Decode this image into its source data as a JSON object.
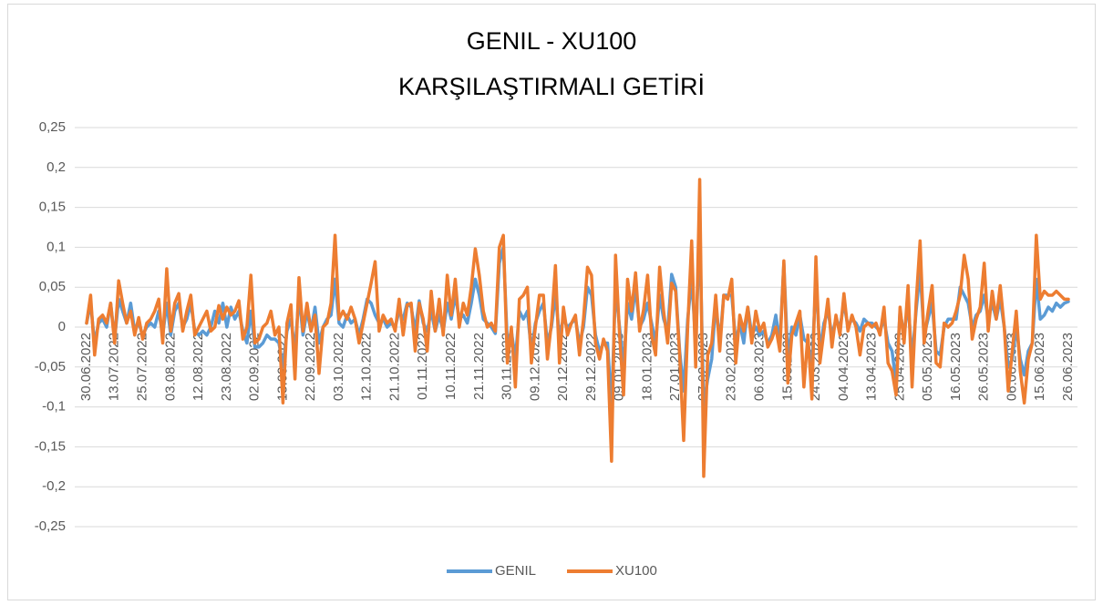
{
  "chart_data": {
    "type": "line",
    "title": [
      "GENIL - XU100",
      "KARŞILAŞTIRMALI GETİRİ"
    ],
    "categories": [
      "30.06.2022",
      null,
      null,
      null,
      null,
      null,
      null,
      "13.07.2022",
      null,
      null,
      null,
      null,
      null,
      null,
      "25.07.2022",
      null,
      null,
      null,
      null,
      null,
      null,
      "03.08.2022",
      null,
      null,
      null,
      null,
      null,
      null,
      "12.08.2022",
      null,
      null,
      null,
      null,
      null,
      null,
      "23.08.2022",
      null,
      null,
      null,
      null,
      null,
      null,
      "02.09.2022",
      null,
      null,
      null,
      null,
      null,
      null,
      "13.09.2022",
      null,
      null,
      null,
      null,
      null,
      null,
      "22.09.2022",
      null,
      null,
      null,
      null,
      null,
      null,
      "03.10.2022",
      null,
      null,
      null,
      null,
      null,
      null,
      "12.10.2022",
      null,
      null,
      null,
      null,
      null,
      null,
      "21.10.2022",
      null,
      null,
      null,
      null,
      null,
      null,
      "01.11.2022",
      null,
      null,
      null,
      null,
      null,
      null,
      "10.11.2022",
      null,
      null,
      null,
      null,
      null,
      null,
      "21.11.2022",
      null,
      null,
      null,
      null,
      null,
      null,
      "30.11.2022",
      null,
      null,
      null,
      null,
      null,
      null,
      "09.12.2022",
      null,
      null,
      null,
      null,
      null,
      null,
      "20.12.2022",
      null,
      null,
      null,
      null,
      null,
      null,
      "29.12.2022",
      null,
      null,
      null,
      null,
      null,
      null,
      "09.01.2023",
      null,
      null,
      null,
      null,
      null,
      null,
      "18.01.2023",
      null,
      null,
      null,
      null,
      null,
      null,
      "27.01.2023",
      null,
      null,
      null,
      null,
      null,
      null,
      "07.02.2023",
      null,
      null,
      null,
      null,
      null,
      null,
      "23.02.2023",
      null,
      null,
      null,
      null,
      null,
      null,
      "06.03.2023",
      null,
      null,
      null,
      null,
      null,
      null,
      "15.03.2023",
      null,
      null,
      null,
      null,
      null,
      null,
      "24.03.2023",
      null,
      null,
      null,
      null,
      null,
      null,
      "04.04.2023",
      null,
      null,
      null,
      null,
      null,
      null,
      "13.04.2023",
      null,
      null,
      null,
      null,
      null,
      null,
      "25.04.2023",
      null,
      null,
      null,
      null,
      null,
      null,
      "05.05.2023",
      null,
      null,
      null,
      null,
      null,
      null,
      "16.05.2023",
      null,
      null,
      null,
      null,
      null,
      null,
      "26.05.2023",
      null,
      null,
      null,
      null,
      null,
      null,
      "06.06.2023",
      null,
      null,
      null,
      null,
      null,
      null,
      "15.06.2023",
      null,
      null,
      null,
      null,
      null,
      null,
      "26.06.2023"
    ],
    "series": [
      {
        "name": "GENIL",
        "color": "#5b9bd5",
        "values": [
          0.005,
          0.03,
          -0.02,
          0.005,
          0.01,
          0.0,
          0.03,
          -0.015,
          0.035,
          0.02,
          0.005,
          0.03,
          -0.005,
          0.005,
          -0.01,
          0.0,
          0.005,
          0.0,
          0.02,
          -0.01,
          0.03,
          -0.01,
          0.02,
          0.03,
          0.0,
          0.01,
          0.03,
          -0.005,
          -0.01,
          -0.005,
          -0.01,
          0.0,
          0.02,
          0.005,
          0.03,
          0.0,
          0.025,
          0.01,
          0.02,
          -0.005,
          -0.02,
          0.02,
          -0.025,
          -0.025,
          -0.02,
          -0.01,
          -0.015,
          -0.015,
          -0.02,
          -0.05,
          -0.005,
          0.01,
          -0.03,
          0.04,
          -0.01,
          0.02,
          -0.005,
          0.025,
          -0.02,
          0.0,
          0.01,
          0.015,
          0.06,
          0.005,
          0.0,
          0.015,
          0.005,
          0.01,
          -0.01,
          0.01,
          0.035,
          0.03,
          0.015,
          0.005,
          0.01,
          0.0,
          0.005,
          0.0,
          0.02,
          0.01,
          0.03,
          0.025,
          -0.005,
          0.033,
          0.005,
          -0.005,
          0.02,
          -0.005,
          0.015,
          -0.005,
          0.03,
          0.01,
          0.04,
          0.01,
          0.015,
          0.005,
          0.03,
          0.06,
          0.04,
          0.01,
          0.005,
          0.0,
          -0.008,
          0.08,
          0.1,
          -0.02,
          -0.005,
          -0.04,
          0.02,
          0.01,
          0.02,
          -0.03,
          0.005,
          0.02,
          0.03,
          -0.02,
          0.0,
          0.04,
          -0.01,
          0.01,
          0.0,
          0.005,
          0.01,
          -0.02,
          0.0,
          0.05,
          0.04,
          -0.01,
          -0.03,
          -0.02,
          -0.02,
          -0.1,
          0.05,
          0.0,
          -0.05,
          0.03,
          0.01,
          0.05,
          0.0,
          0.01,
          0.03,
          0.005,
          -0.02,
          0.04,
          0.01,
          -0.005,
          0.066,
          0.05,
          -0.03,
          -0.08,
          0.01,
          0.06,
          -0.02,
          0.12,
          -0.1,
          -0.065,
          -0.04,
          0.03,
          -0.02,
          0.04,
          0.04,
          0.04,
          -0.02,
          0.005,
          -0.02,
          0.025,
          -0.01,
          0.0,
          -0.01,
          -0.005,
          -0.02,
          -0.01,
          0.015,
          -0.02,
          0.08,
          -0.04,
          0.0,
          -0.01,
          0.015,
          -0.015,
          -0.02,
          -0.05,
          0.06,
          -0.03,
          0.005,
          0.02,
          -0.01,
          0.01,
          0.0,
          0.03,
          0.0,
          0.01,
          0.005,
          -0.005,
          0.01,
          0.005,
          0.005,
          0.0,
          -0.005,
          0.01,
          -0.02,
          -0.03,
          -0.07,
          0.02,
          -0.01,
          0.03,
          -0.04,
          0.02,
          0.07,
          -0.01,
          0.01,
          0.03,
          -0.03,
          -0.035,
          0.0,
          0.01,
          0.01,
          0.01,
          0.05,
          0.04,
          0.03,
          0.0,
          0.015,
          0.02,
          0.04,
          0.01,
          0.03,
          0.01,
          0.035,
          0.0,
          -0.05,
          -0.04,
          0.0,
          -0.04,
          -0.06,
          -0.03,
          -0.02,
          0.06,
          0.01,
          0.015,
          0.025,
          0.02,
          0.03,
          0.025,
          0.03,
          0.032
        ]
      },
      {
        "name": "XU100",
        "color": "#ed7d31",
        "values": [
          0.005,
          0.04,
          -0.035,
          0.01,
          0.015,
          0.005,
          0.03,
          -0.02,
          0.058,
          0.03,
          0.005,
          0.02,
          -0.01,
          0.012,
          -0.015,
          0.005,
          0.01,
          0.02,
          0.035,
          -0.02,
          0.073,
          -0.005,
          0.03,
          0.042,
          -0.005,
          0.02,
          0.04,
          -0.01,
          0.0,
          0.01,
          0.02,
          -0.005,
          0.0,
          0.027,
          0.01,
          0.025,
          0.015,
          0.02,
          0.033,
          -0.015,
          0.0,
          0.065,
          -0.02,
          -0.015,
          0.0,
          0.005,
          0.02,
          -0.01,
          0.0,
          -0.095,
          0.005,
          0.028,
          -0.065,
          0.062,
          -0.005,
          0.03,
          -0.005,
          0.015,
          -0.058,
          0.0,
          0.005,
          0.03,
          0.115,
          0.01,
          0.02,
          0.01,
          0.025,
          0.01,
          -0.02,
          0.005,
          0.03,
          0.055,
          0.082,
          -0.005,
          0.015,
          0.005,
          0.01,
          -0.005,
          0.035,
          -0.01,
          0.028,
          0.03,
          -0.03,
          0.03,
          0.01,
          -0.03,
          0.045,
          -0.005,
          0.035,
          -0.01,
          0.065,
          0.015,
          0.06,
          0.0,
          0.03,
          0.015,
          0.05,
          0.098,
          0.065,
          0.02,
          0.0,
          0.005,
          -0.005,
          0.1,
          0.115,
          -0.045,
          0.0,
          -0.075,
          0.035,
          0.04,
          0.05,
          -0.045,
          0.0,
          0.04,
          0.04,
          -0.04,
          0.005,
          0.077,
          -0.045,
          0.025,
          -0.01,
          0.005,
          0.015,
          -0.035,
          0.01,
          0.075,
          0.065,
          -0.02,
          -0.04,
          -0.015,
          -0.03,
          -0.168,
          0.09,
          -0.01,
          -0.085,
          0.06,
          0.02,
          0.068,
          -0.005,
          0.022,
          0.065,
          -0.01,
          -0.035,
          0.075,
          0.02,
          -0.02,
          0.055,
          0.045,
          -0.035,
          -0.142,
          0.0,
          0.108,
          -0.05,
          0.185,
          -0.187,
          -0.035,
          -0.02,
          0.04,
          -0.03,
          0.04,
          0.035,
          0.06,
          -0.045,
          0.015,
          -0.005,
          0.025,
          -0.02,
          0.02,
          -0.005,
          0.005,
          -0.025,
          -0.015,
          0.0,
          -0.03,
          0.083,
          -0.07,
          -0.01,
          0.005,
          0.02,
          -0.075,
          -0.01,
          -0.09,
          0.088,
          -0.045,
          -0.005,
          0.035,
          -0.025,
          0.015,
          -0.01,
          0.042,
          -0.005,
          0.015,
          0.0,
          -0.035,
          0.0,
          0.005,
          0.0,
          0.005,
          -0.01,
          0.025,
          -0.045,
          -0.055,
          -0.085,
          0.025,
          -0.02,
          0.052,
          -0.075,
          0.03,
          0.108,
          -0.02,
          0.02,
          0.052,
          -0.045,
          -0.05,
          0.005,
          0.0,
          0.005,
          0.02,
          0.04,
          0.09,
          0.06,
          -0.015,
          0.01,
          0.025,
          0.08,
          -0.005,
          0.045,
          0.01,
          0.052,
          0.0,
          -0.08,
          -0.03,
          0.02,
          -0.055,
          -0.095,
          -0.04,
          -0.02,
          0.115,
          0.035,
          0.045,
          0.04,
          0.04,
          0.045,
          0.04,
          0.035,
          0.035
        ]
      }
    ],
    "ylim": [
      -0.25,
      0.25
    ],
    "yticks": [
      {
        "value": -0.25,
        "label": "-0,25"
      },
      {
        "value": -0.2,
        "label": "-0,2"
      },
      {
        "value": -0.15,
        "label": "-0,15"
      },
      {
        "value": -0.1,
        "label": "-0,1"
      },
      {
        "value": -0.05,
        "label": "-0,05"
      },
      0,
      {
        "value": 0.05,
        "label": "0,05"
      },
      {
        "value": 0.1,
        "label": "0,1"
      },
      {
        "value": 0.15,
        "label": "0,15"
      },
      {
        "value": 0.2,
        "label": "0,2"
      },
      {
        "value": 0.25,
        "label": "0,25"
      }
    ],
    "grid": true,
    "legend": "bottom"
  }
}
